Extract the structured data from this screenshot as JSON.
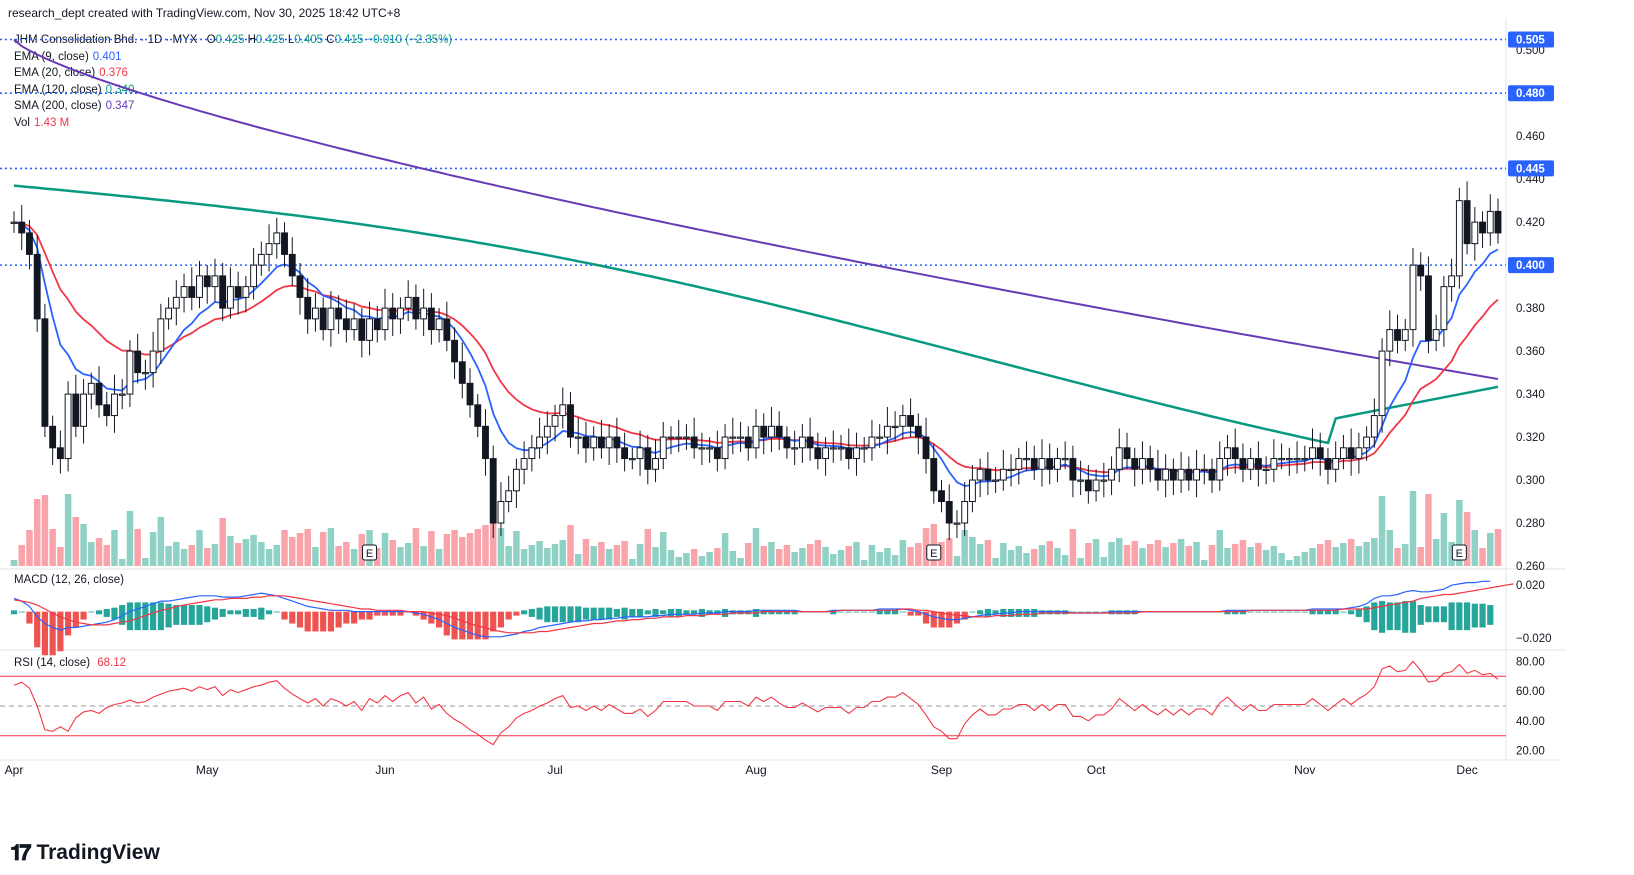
{
  "header": {
    "attribution": "research_dept created with TradingView.com, Nov 30, 2025 18:42 UTC+8"
  },
  "symbol_line": {
    "name": "JHM Consolidation Bhd. · 1D · MYX",
    "o_label": "O",
    "o_value": "0.425",
    "h_label": "H",
    "h_value": "0.425",
    "l_label": "L",
    "l_value": "0.405",
    "c_label": "C",
    "c_value": "0.415",
    "change": "−0.010 (−2.35%)"
  },
  "indicators": [
    {
      "label": "EMA (9, close)",
      "value": "0.401",
      "color": "#2962ff"
    },
    {
      "label": "EMA (20, close)",
      "value": "0.376",
      "color": "#f23645"
    },
    {
      "label": "EMA (120, close)",
      "value": "0.340",
      "color": "#089981"
    },
    {
      "label": "SMA (200, close)",
      "value": "0.347",
      "color": "#673ab7"
    },
    {
      "label": "Vol",
      "value": "1.43 M",
      "color": "#f23645"
    }
  ],
  "macd": {
    "label": "MACD (12, 26, close)"
  },
  "rsi": {
    "label": "RSI (14, close)",
    "value": "68.12",
    "color": "#f23645"
  },
  "logo_text": "TradingView",
  "logo_icon": "tradingview-logo-icon",
  "price_badges": [
    {
      "value": "0.505",
      "color": "#2962ff"
    },
    {
      "value": "0.480",
      "color": "#2962ff"
    },
    {
      "value": "0.445",
      "color": "#2962ff"
    },
    {
      "value": "0.400",
      "color": "#2962ff"
    }
  ],
  "chart_data": {
    "type": "candlestick",
    "price_axis": {
      "ticks": [
        "0.500",
        "0.460",
        "0.440",
        "0.420",
        "0.380",
        "0.360",
        "0.340",
        "0.320",
        "0.300",
        "0.280",
        "0.260"
      ],
      "range": [
        0.26,
        0.515
      ]
    },
    "macd_axis": {
      "ticks": [
        "0.020",
        "−0.020"
      ],
      "range": [
        -0.026,
        0.03
      ]
    },
    "rsi_axis": {
      "ticks": [
        "80.00",
        "60.00",
        "40.00",
        "20.00"
      ],
      "range": [
        15,
        85
      ],
      "bands": [
        70,
        30
      ],
      "mid": 50
    },
    "x_ticks": [
      "Apr",
      "May",
      "Jun",
      "Jul",
      "Aug",
      "Sep",
      "Oct",
      "Nov",
      "Dec"
    ],
    "x_tick_index": [
      0,
      25,
      48,
      70,
      96,
      120,
      140,
      167,
      188
    ],
    "horizontal_levels": [
      0.505,
      0.48,
      0.445,
      0.4
    ],
    "earnings_markers": {
      "label": "E",
      "index": [
        46,
        119,
        187
      ]
    },
    "close": [
      0.42,
      0.415,
      0.405,
      0.375,
      0.325,
      0.315,
      0.31,
      0.34,
      0.325,
      0.34,
      0.345,
      0.335,
      0.33,
      0.34,
      0.34,
      0.36,
      0.35,
      0.35,
      0.36,
      0.375,
      0.38,
      0.385,
      0.39,
      0.385,
      0.395,
      0.39,
      0.395,
      0.38,
      0.39,
      0.385,
      0.39,
      0.4,
      0.405,
      0.41,
      0.415,
      0.405,
      0.395,
      0.385,
      0.375,
      0.38,
      0.37,
      0.38,
      0.375,
      0.37,
      0.375,
      0.365,
      0.375,
      0.37,
      0.38,
      0.375,
      0.38,
      0.385,
      0.375,
      0.38,
      0.37,
      0.375,
      0.365,
      0.355,
      0.345,
      0.335,
      0.325,
      0.31,
      0.28,
      0.29,
      0.295,
      0.305,
      0.31,
      0.315,
      0.32,
      0.325,
      0.33,
      0.335,
      0.32,
      0.32,
      0.315,
      0.32,
      0.315,
      0.32,
      0.315,
      0.31,
      0.31,
      0.315,
      0.305,
      0.31,
      0.32,
      0.32,
      0.32,
      0.32,
      0.315,
      0.315,
      0.315,
      0.31,
      0.32,
      0.32,
      0.32,
      0.315,
      0.325,
      0.32,
      0.325,
      0.32,
      0.315,
      0.315,
      0.32,
      0.315,
      0.31,
      0.315,
      0.315,
      0.315,
      0.31,
      0.315,
      0.315,
      0.32,
      0.32,
      0.325,
      0.325,
      0.33,
      0.325,
      0.32,
      0.31,
      0.295,
      0.29,
      0.28,
      0.28,
      0.29,
      0.3,
      0.305,
      0.3,
      0.3,
      0.305,
      0.305,
      0.31,
      0.31,
      0.305,
      0.31,
      0.305,
      0.31,
      0.31,
      0.3,
      0.3,
      0.295,
      0.3,
      0.3,
      0.305,
      0.315,
      0.31,
      0.305,
      0.31,
      0.305,
      0.3,
      0.305,
      0.3,
      0.305,
      0.3,
      0.305,
      0.305,
      0.3,
      0.31,
      0.315,
      0.31,
      0.305,
      0.31,
      0.305,
      0.305,
      0.31,
      0.31,
      0.31,
      0.31,
      0.31,
      0.315,
      0.31,
      0.305,
      0.31,
      0.315,
      0.31,
      0.315,
      0.32,
      0.33,
      0.36,
      0.37,
      0.365,
      0.37,
      0.4,
      0.395,
      0.365,
      0.37,
      0.39,
      0.395,
      0.43,
      0.41,
      0.42,
      0.415,
      0.425,
      0.415
    ],
    "macd_line": [
      0.01,
      0.008,
      0.004,
      -0.004,
      -0.009,
      -0.012,
      -0.014,
      -0.012,
      -0.012,
      -0.011,
      -0.01,
      -0.009,
      -0.008,
      -0.006,
      -0.003,
      0.0,
      0.002,
      0.004,
      0.006,
      0.008,
      0.008,
      0.009,
      0.01,
      0.011,
      0.012,
      0.012,
      0.012,
      0.011,
      0.011,
      0.011,
      0.012,
      0.013,
      0.014,
      0.013,
      0.012,
      0.01,
      0.008,
      0.006,
      0.004,
      0.003,
      0.002,
      0.001,
      0.001,
      0.001,
      0.0,
      0.0,
      0.0,
      0.0,
      0.0,
      0.0,
      0.0,
      0.0,
      -0.001,
      -0.002,
      -0.004,
      -0.006,
      -0.009,
      -0.012,
      -0.014,
      -0.016,
      -0.018,
      -0.019,
      -0.019,
      -0.019,
      -0.018,
      -0.017,
      -0.015,
      -0.014,
      -0.012,
      -0.011,
      -0.01,
      -0.009,
      -0.008,
      -0.007,
      -0.007,
      -0.006,
      -0.006,
      -0.005,
      -0.005,
      -0.004,
      -0.004,
      -0.004,
      -0.004,
      -0.003,
      -0.003,
      -0.002,
      -0.002,
      -0.002,
      -0.002,
      -0.001,
      -0.001,
      -0.001,
      0.0,
      0.0,
      0.0,
      0.0,
      0.001,
      0.001,
      0.001,
      0.001,
      0.001,
      0.001,
      0.0,
      0.0,
      0.0,
      0.0,
      0.001,
      0.001,
      0.001,
      0.001,
      0.001,
      0.001,
      0.002,
      0.002,
      0.002,
      0.002,
      0.001,
      0.0,
      -0.002,
      -0.004,
      -0.005,
      -0.006,
      -0.006,
      -0.005,
      -0.004,
      -0.003,
      -0.002,
      -0.002,
      -0.001,
      -0.001,
      0.0,
      0.0,
      0.0,
      0.0,
      0.0,
      0.0,
      0.0,
      -0.001,
      -0.001,
      -0.001,
      -0.001,
      -0.001,
      0.0,
      0.0,
      0.0,
      0.0,
      0.0,
      0.0,
      0.0,
      0.0,
      0.0,
      0.0,
      0.0,
      0.0,
      0.0,
      0.0,
      0.0,
      0.001,
      0.001,
      0.001,
      0.001,
      0.001,
      0.001,
      0.001,
      0.001,
      0.001,
      0.001,
      0.001,
      0.002,
      0.002,
      0.002,
      0.002,
      0.002,
      0.003,
      0.004,
      0.006,
      0.01,
      0.012,
      0.012,
      0.013,
      0.015,
      0.016,
      0.015,
      0.015,
      0.016,
      0.017,
      0.02,
      0.021,
      0.022,
      0.022,
      0.023,
      0.023
    ],
    "signal_line": [
      0.009,
      0.008,
      0.007,
      0.005,
      0.002,
      -0.001,
      -0.004,
      -0.006,
      -0.008,
      -0.009,
      -0.01,
      -0.01,
      -0.01,
      -0.009,
      -0.008,
      -0.007,
      -0.005,
      -0.003,
      -0.001,
      0.001,
      0.002,
      0.004,
      0.005,
      0.006,
      0.007,
      0.008,
      0.009,
      0.009,
      0.01,
      0.01,
      0.01,
      0.011,
      0.011,
      0.012,
      0.012,
      0.012,
      0.011,
      0.01,
      0.009,
      0.008,
      0.007,
      0.006,
      0.005,
      0.004,
      0.003,
      0.002,
      0.002,
      0.001,
      0.001,
      0.001,
      0.001,
      0.0,
      0.0,
      0.0,
      -0.001,
      -0.002,
      -0.003,
      -0.005,
      -0.007,
      -0.009,
      -0.011,
      -0.012,
      -0.014,
      -0.015,
      -0.016,
      -0.016,
      -0.016,
      -0.016,
      -0.015,
      -0.015,
      -0.014,
      -0.013,
      -0.012,
      -0.011,
      -0.01,
      -0.009,
      -0.009,
      -0.008,
      -0.007,
      -0.007,
      -0.006,
      -0.006,
      -0.005,
      -0.005,
      -0.004,
      -0.004,
      -0.004,
      -0.003,
      -0.003,
      -0.003,
      -0.002,
      -0.002,
      -0.002,
      -0.001,
      -0.001,
      -0.001,
      -0.001,
      0.0,
      0.0,
      0.0,
      0.0,
      0.0,
      0.0,
      0.0,
      0.0,
      0.0,
      0.0,
      0.001,
      0.001,
      0.001,
      0.001,
      0.001,
      0.001,
      0.001,
      0.001,
      0.002,
      0.002,
      0.001,
      0.001,
      0.0,
      -0.001,
      -0.002,
      -0.003,
      -0.003,
      -0.004,
      -0.004,
      -0.004,
      -0.003,
      -0.003,
      -0.003,
      -0.002,
      -0.002,
      -0.002,
      -0.001,
      -0.001,
      -0.001,
      -0.001,
      -0.001,
      -0.001,
      -0.001,
      -0.001,
      -0.001,
      -0.001,
      -0.001,
      -0.001,
      -0.001,
      0.0,
      0.0,
      0.0,
      0.0,
      0.0,
      0.0,
      0.0,
      0.0,
      0.0,
      0.0,
      0.0,
      0.0,
      0.0,
      0.0,
      0.001,
      0.001,
      0.001,
      0.001,
      0.001,
      0.001,
      0.001,
      0.001,
      0.001,
      0.001,
      0.001,
      0.001,
      0.002,
      0.002,
      0.002,
      0.002,
      0.003,
      0.004,
      0.005,
      0.006,
      0.007,
      0.008,
      0.01,
      0.011,
      0.012,
      0.013,
      0.013,
      0.014,
      0.015,
      0.016,
      0.017,
      0.018,
      0.019,
      0.02,
      0.021
    ],
    "rsi": [
      64,
      66,
      62,
      50,
      34,
      33,
      36,
      33,
      42,
      46,
      47,
      45,
      49,
      51,
      52,
      54,
      52,
      53,
      56,
      58,
      60,
      61,
      62,
      60,
      63,
      61,
      63,
      57,
      61,
      59,
      61,
      63,
      64,
      66,
      67,
      62,
      58,
      55,
      52,
      55,
      50,
      55,
      53,
      50,
      53,
      47,
      55,
      52,
      57,
      53,
      57,
      59,
      52,
      56,
      48,
      51,
      45,
      41,
      38,
      34,
      31,
      27,
      24,
      32,
      36,
      42,
      45,
      47,
      50,
      52,
      55,
      57,
      49,
      50,
      47,
      50,
      47,
      51,
      48,
      45,
      45,
      48,
      43,
      47,
      53,
      53,
      53,
      53,
      50,
      50,
      50,
      47,
      53,
      53,
      53,
      50,
      56,
      53,
      56,
      52,
      49,
      49,
      52,
      49,
      46,
      49,
      49,
      49,
      45,
      49,
      49,
      53,
      53,
      56,
      56,
      59,
      55,
      51,
      44,
      36,
      33,
      28,
      28,
      38,
      44,
      48,
      44,
      44,
      48,
      48,
      51,
      51,
      47,
      51,
      47,
      51,
      51,
      43,
      43,
      40,
      44,
      44,
      48,
      55,
      51,
      47,
      51,
      47,
      44,
      48,
      44,
      48,
      44,
      48,
      48,
      44,
      52,
      56,
      51,
      47,
      51,
      47,
      47,
      51,
      51,
      51,
      51,
      51,
      55,
      51,
      47,
      51,
      55,
      51,
      55,
      58,
      63,
      75,
      77,
      73,
      74,
      80,
      74,
      66,
      67,
      72,
      73,
      78,
      72,
      74,
      71,
      72,
      68
    ]
  }
}
